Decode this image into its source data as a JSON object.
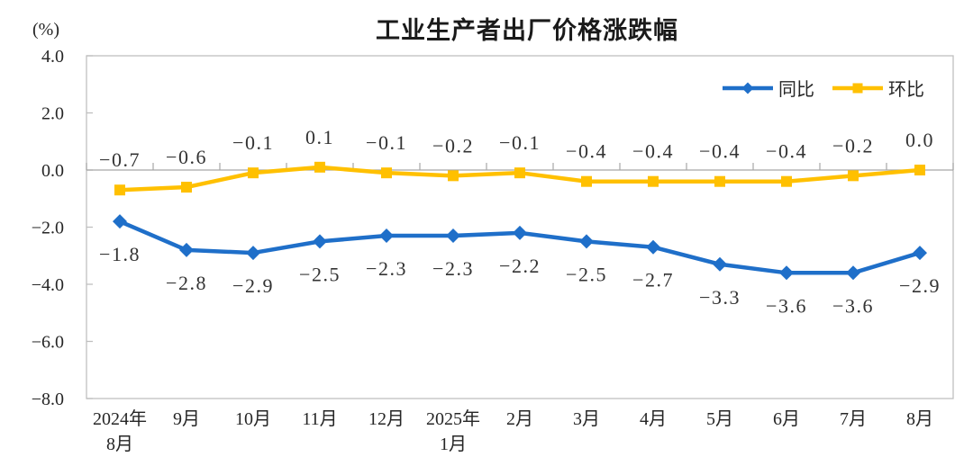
{
  "chart_data": {
    "type": "line",
    "title": "工业生产者出厂价格涨跌幅",
    "ylabel": "(%)",
    "categories": [
      [
        "2024年",
        "8月"
      ],
      "9月",
      "10月",
      "11月",
      "12月",
      [
        "2025年",
        "1月"
      ],
      "2月",
      "3月",
      "4月",
      "5月",
      "6月",
      "7月",
      "8月"
    ],
    "series": [
      {
        "name": "同比",
        "color": "#1F6FC9",
        "marker": "diamond",
        "label_position": "below",
        "values": [
          -1.8,
          -2.8,
          -2.9,
          -2.5,
          -2.3,
          -2.3,
          -2.2,
          -2.5,
          -2.7,
          -3.3,
          -3.6,
          -3.6,
          -2.9
        ]
      },
      {
        "name": "环比",
        "color": "#FFC000",
        "marker": "square",
        "label_position": "above",
        "values": [
          -0.7,
          -0.6,
          -0.1,
          0.1,
          -0.1,
          -0.2,
          -0.1,
          -0.4,
          -0.4,
          -0.4,
          -0.4,
          -0.2,
          0.0
        ]
      }
    ],
    "ylim": [
      -8.0,
      4.0
    ],
    "ytick_step": 2.0,
    "yticks": [
      "4.0",
      "2.0",
      "0.0",
      "-2.0",
      "-4.0",
      "-6.0",
      "-8.0"
    ],
    "grid": false,
    "legend_position": "top-right",
    "axis_color": "#bfbfbf",
    "zero_line_color": "#a6a6a6"
  }
}
